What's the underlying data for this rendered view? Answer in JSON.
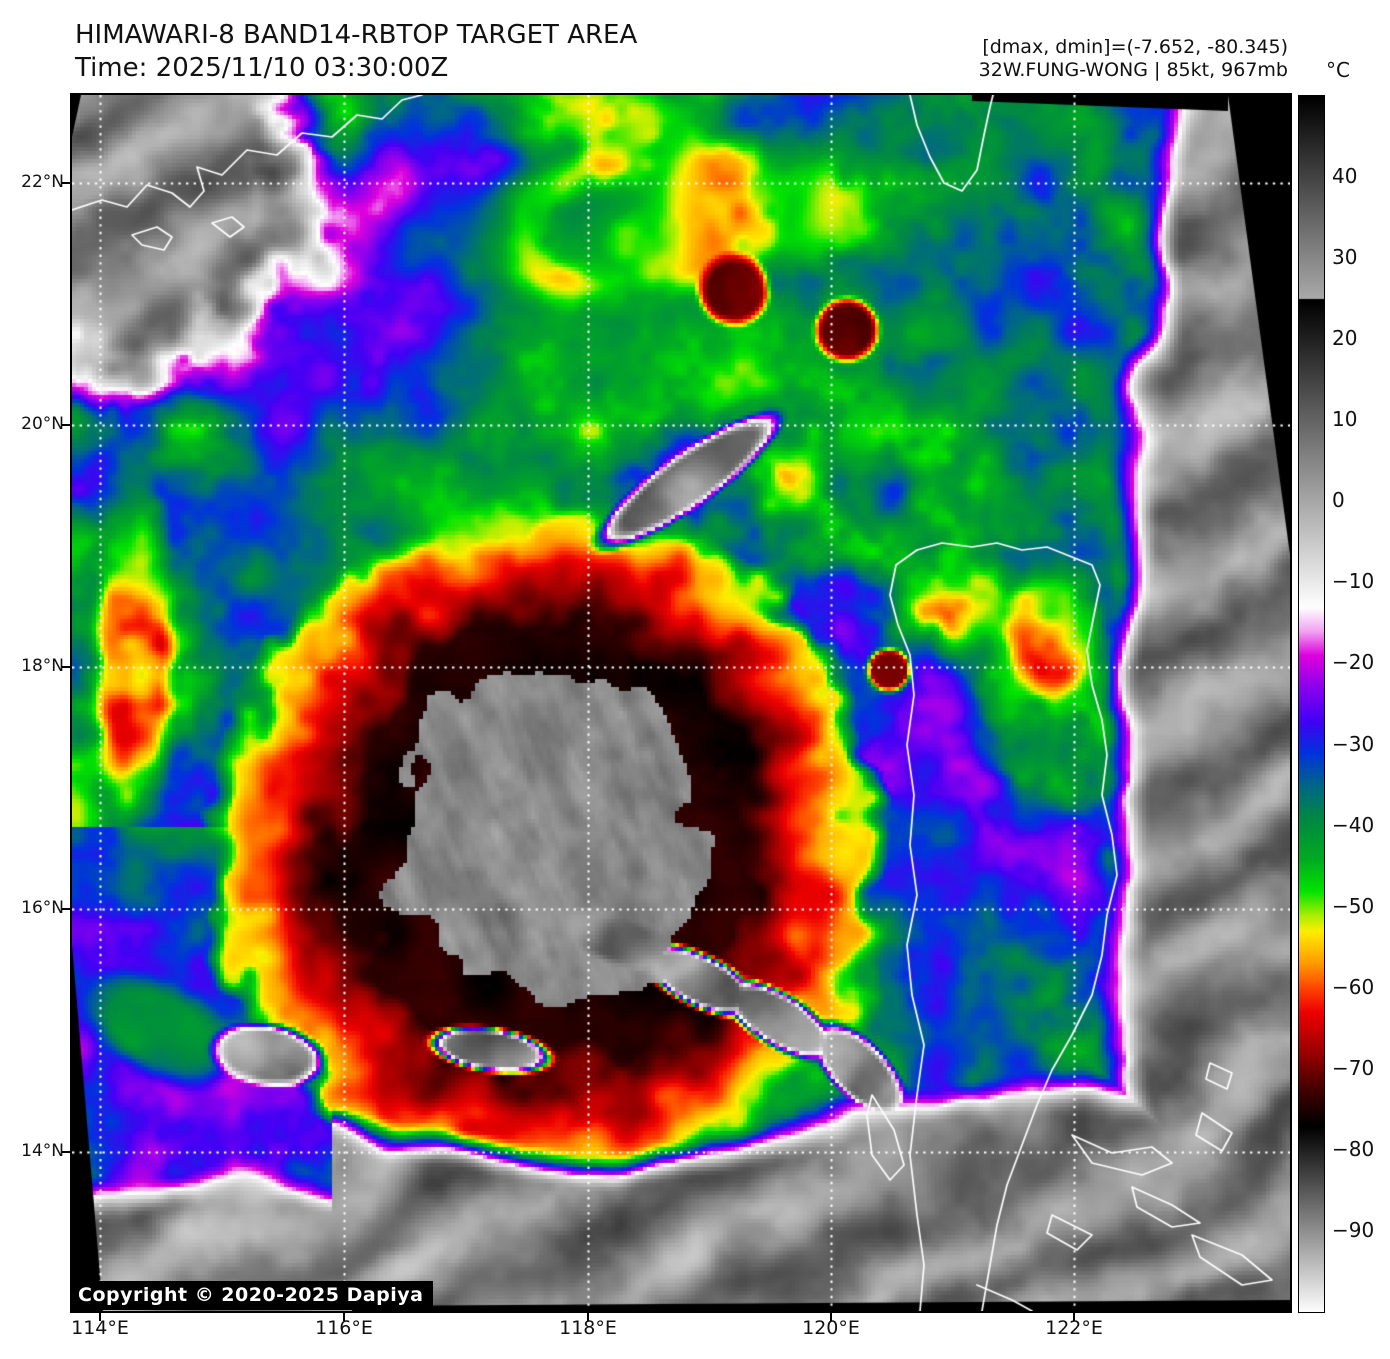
{
  "header": {
    "title": "HIMAWARI-8 BAND14-RBTOP TARGET AREA",
    "time_line": "Time: 2025/11/10 03:30:00Z",
    "stats_line": "[dmax, dmin]=(-7.652, -80.345)",
    "storm_line": "32W.FUNG-WONG | 85kt, 967mb"
  },
  "storm": {
    "designation": "32W",
    "name": "FUNG-WONG",
    "intensity": "85kt",
    "pressure": "967mb"
  },
  "map": {
    "copyright": "Copyright © 2020-2025 Dapiya",
    "lat_labels": [
      "22°N",
      "20°N",
      "18°N",
      "16°N",
      "14°N"
    ],
    "lon_labels": [
      "114°E",
      "116°E",
      "118°E",
      "120°E",
      "122°E"
    ]
  },
  "colorbar": {
    "unit": "°C",
    "tick_values": [
      40,
      30,
      20,
      10,
      0,
      -10,
      -20,
      -30,
      -40,
      -50,
      -60,
      -70,
      -80,
      -90
    ],
    "tick_labels": [
      "40",
      "30",
      "20",
      "10",
      "0",
      "−10",
      "−20",
      "−30",
      "−40",
      "−50",
      "−60",
      "−70",
      "−80",
      "−90"
    ],
    "domain": [
      50,
      -100
    ],
    "stops": [
      [
        50,
        "#000000"
      ],
      [
        25.02,
        "#aaaaaa"
      ],
      [
        25,
        "#000000"
      ],
      [
        -13,
        "#ffffff"
      ],
      [
        -16,
        "#f2a2f2"
      ],
      [
        -19,
        "#dd00dd"
      ],
      [
        -23,
        "#8800ee"
      ],
      [
        -27,
        "#4400f4"
      ],
      [
        -31,
        "#0033dd"
      ],
      [
        -35,
        "#006688"
      ],
      [
        -39,
        "#008844"
      ],
      [
        -44,
        "#00aa22"
      ],
      [
        -48,
        "#00e400"
      ],
      [
        -51,
        "#aaee00"
      ],
      [
        -53,
        "#ffee00"
      ],
      [
        -57,
        "#ff9900"
      ],
      [
        -60,
        "#ff4400"
      ],
      [
        -63,
        "#ee0000"
      ],
      [
        -68,
        "#990000"
      ],
      [
        -73,
        "#3a0000"
      ],
      [
        -77,
        "#000000"
      ],
      [
        -100,
        "#ffffff"
      ]
    ]
  },
  "grid": {
    "line_color": "#ffffff",
    "coast_color": "#ffffff"
  }
}
